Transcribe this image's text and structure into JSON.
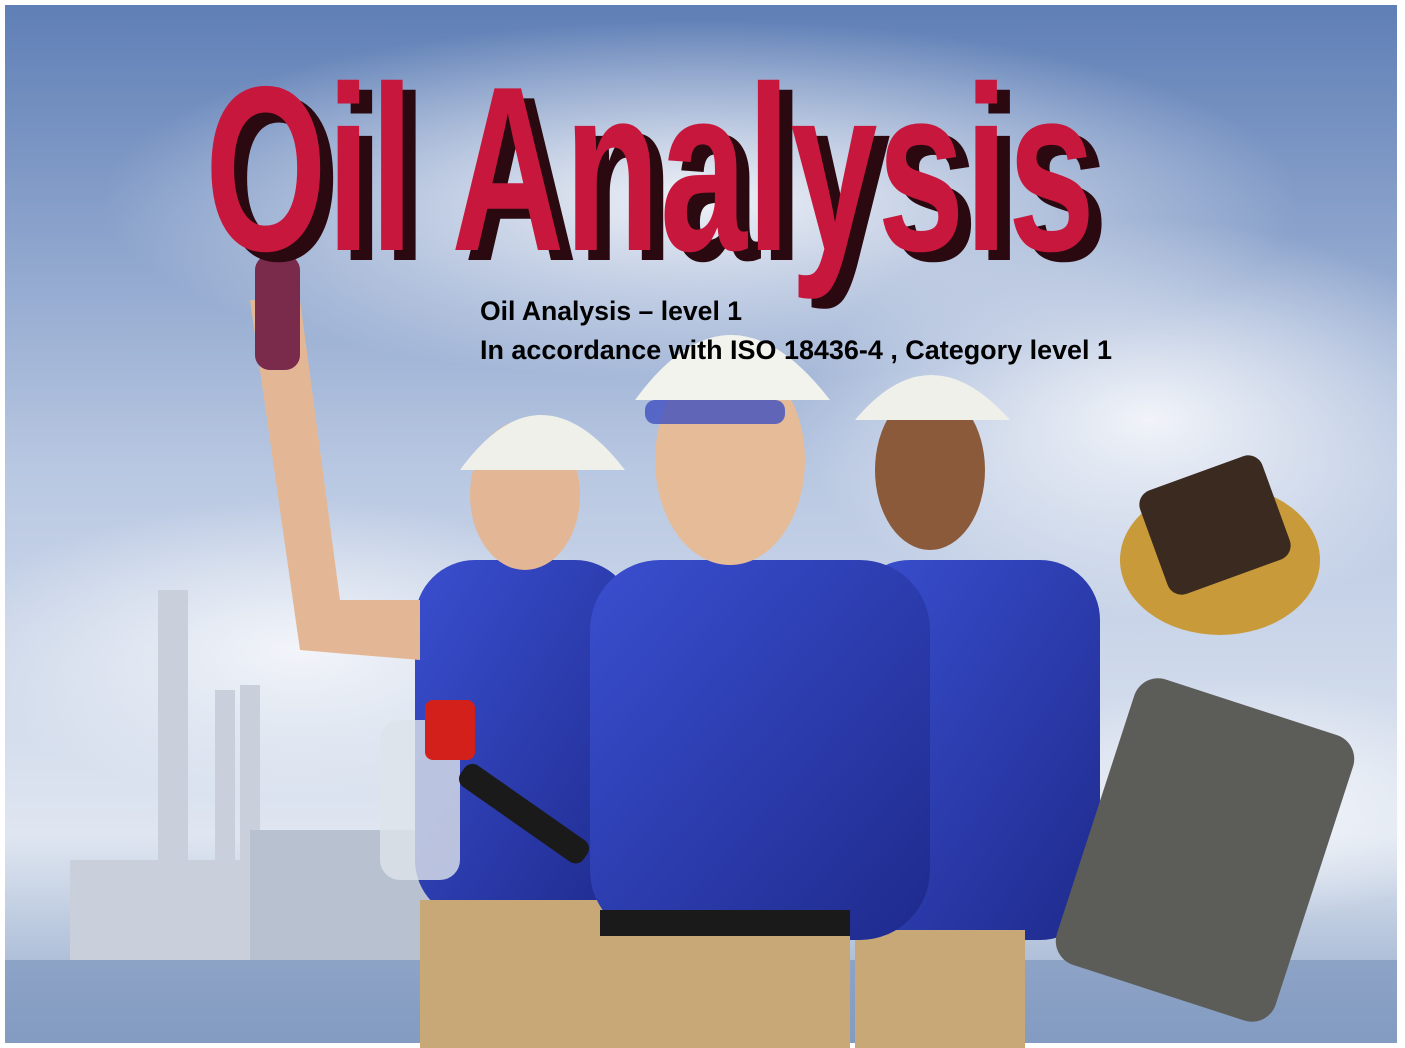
{
  "title": "Oil Analysis",
  "subtitle": [
    "Oil Analysis – level 1",
    "In accordance with ISO 18436-4 , Category level 1"
  ]
}
